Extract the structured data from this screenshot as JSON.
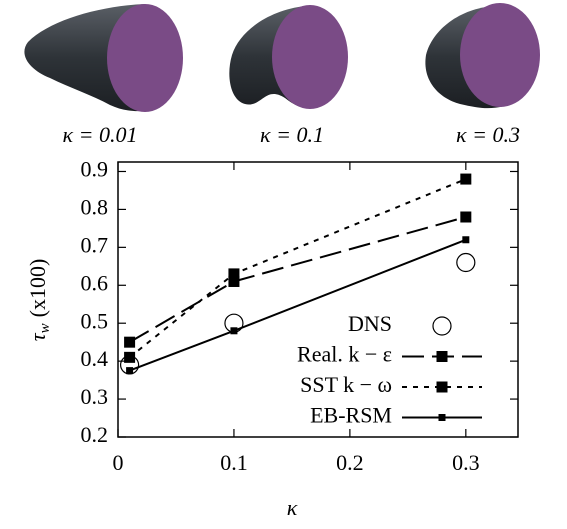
{
  "panels": [
    {
      "label": "κ = 0.01"
    },
    {
      "label": "κ = 0.1"
    },
    {
      "label": "κ = 0.3"
    }
  ],
  "chart_data": {
    "type": "line",
    "x_label": "κ",
    "y_label_symbol": "τ",
    "y_label_subscript": "w",
    "y_label_unit": "(x100)",
    "xlim": [
      0,
      0.345
    ],
    "ylim": [
      0.2,
      0.925
    ],
    "xticks": [
      0,
      0.1,
      0.2,
      0.3
    ],
    "yticks": [
      0.2,
      0.3,
      0.4,
      0.5,
      0.6,
      0.7,
      0.8,
      0.9
    ],
    "legend": "lower right",
    "series": [
      {
        "name": "DNS",
        "color": "#000000",
        "line_style": "none",
        "marker": "circle-open",
        "x": [
          0.01,
          0.1,
          0.3
        ],
        "values": [
          0.39,
          0.5,
          0.66
        ]
      },
      {
        "name": "Real. k − ε",
        "color": "#000000",
        "line_style": "dashed",
        "marker": "square",
        "x": [
          0.01,
          0.1,
          0.3
        ],
        "values": [
          0.45,
          0.61,
          0.78
        ]
      },
      {
        "name": "SST k − ω",
        "color": "#000000",
        "line_style": "dotted",
        "marker": "square",
        "x": [
          0.01,
          0.1,
          0.3
        ],
        "values": [
          0.41,
          0.63,
          0.88
        ]
      },
      {
        "name": "EB-RSM",
        "color": "#000000",
        "line_style": "solid",
        "marker": "square-small",
        "x": [
          0.01,
          0.1,
          0.3
        ],
        "values": [
          0.375,
          0.48,
          0.72
        ]
      }
    ]
  }
}
